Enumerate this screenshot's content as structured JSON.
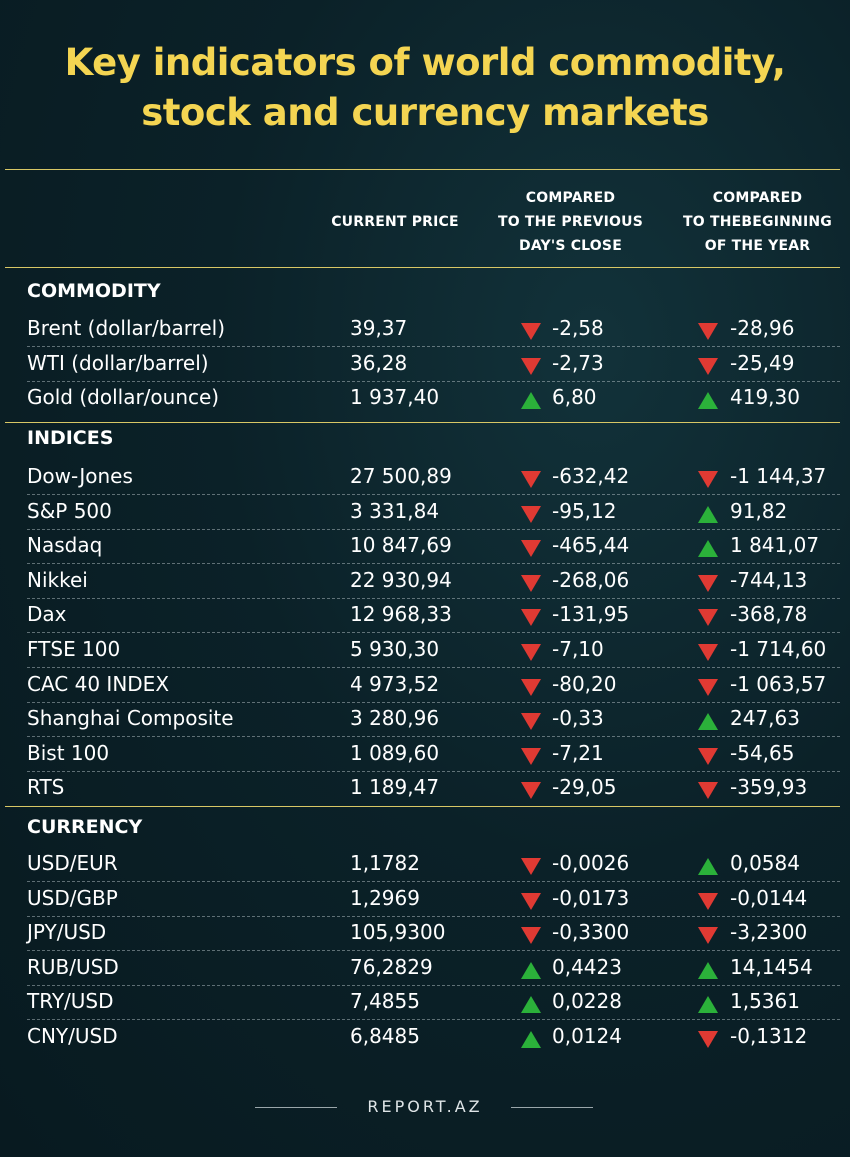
{
  "title": "Key indicators of world commodity, stock and currency markets",
  "headers": {
    "current_price": "CURRENT PRICE",
    "prev_close": [
      "COMPARED",
      "TO THE PREVIOUS",
      "DAY'S CLOSE"
    ],
    "year_begin": [
      "COMPARED",
      "TO THEBEGINNING",
      "OF THE YEAR"
    ]
  },
  "colors": {
    "title": "#f4d552",
    "rule": "#d8c765",
    "up": "#2bb13a",
    "down": "#e03a33"
  },
  "sections": [
    {
      "label": "COMMODITY",
      "rows": [
        {
          "name": "Brent (dollar/barrel)",
          "price": "39,37",
          "d1": "down",
          "v1": "-2,58",
          "d2": "down",
          "v2": "-28,96"
        },
        {
          "name": "WTI (dollar/barrel)",
          "price": "36,28",
          "d1": "down",
          "v1": "-2,73",
          "d2": "down",
          "v2": "-25,49"
        },
        {
          "name": "Gold (dollar/ounce)",
          "price": "1 937,40",
          "d1": "up",
          "v1": "6,80",
          "d2": "up",
          "v2": "419,30"
        }
      ]
    },
    {
      "label": "INDICES",
      "rows": [
        {
          "name": "Dow-Jones",
          "price": "27 500,89",
          "d1": "down",
          "v1": "-632,42",
          "d2": "down",
          "v2": "-1 144,37"
        },
        {
          "name": "S&P 500",
          "price": "3 331,84",
          "d1": "down",
          "v1": "-95,12",
          "d2": "up",
          "v2": "91,82"
        },
        {
          "name": "Nasdaq",
          "price": "10 847,69",
          "d1": "down",
          "v1": "-465,44",
          "d2": "up",
          "v2": "1 841,07"
        },
        {
          "name": "Nikkei",
          "price": "22 930,94",
          "d1": "down",
          "v1": "-268,06",
          "d2": "down",
          "v2": "-744,13"
        },
        {
          "name": "Dax",
          "price": "12 968,33",
          "d1": "down",
          "v1": "-131,95",
          "d2": "down",
          "v2": "-368,78"
        },
        {
          "name": "FTSE 100",
          "price": "5 930,30",
          "d1": "down",
          "v1": "-7,10",
          "d2": "down",
          "v2": "-1 714,60"
        },
        {
          "name": "CAC 40 INDEX",
          "price": "4 973,52",
          "d1": "down",
          "v1": "-80,20",
          "d2": "down",
          "v2": "-1 063,57"
        },
        {
          "name": "Shanghai Composite",
          "price": "3 280,96",
          "d1": "down",
          "v1": "-0,33",
          "d2": "up",
          "v2": "247,63"
        },
        {
          "name": "Bist 100",
          "price": "1 089,60",
          "d1": "down",
          "v1": "-7,21",
          "d2": "down",
          "v2": "-54,65"
        },
        {
          "name": "RTS",
          "price": "1 189,47",
          "d1": "down",
          "v1": "-29,05",
          "d2": "down",
          "v2": "-359,93"
        }
      ]
    },
    {
      "label": "CURRENCY",
      "rows": [
        {
          "name": "USD/EUR",
          "price": "1,1782",
          "d1": "down",
          "v1": "-0,0026",
          "d2": "up",
          "v2": "0,0584"
        },
        {
          "name": "USD/GBP",
          "price": "1,2969",
          "d1": "down",
          "v1": "-0,0173",
          "d2": "down",
          "v2": "-0,0144"
        },
        {
          "name": "JPY/USD",
          "price": "105,9300",
          "d1": "down",
          "v1": "-0,3300",
          "d2": "down",
          "v2": "-3,2300"
        },
        {
          "name": "RUB/USD",
          "price": "76,2829",
          "d1": "up",
          "v1": "0,4423",
          "d2": "up",
          "v2": "14,1454"
        },
        {
          "name": "TRY/USD",
          "price": "7,4855",
          "d1": "up",
          "v1": "0,0228",
          "d2": "up",
          "v2": "1,5361"
        },
        {
          "name": "CNY/USD",
          "price": "6,8485",
          "d1": "up",
          "v1": "0,0124",
          "d2": "down",
          "v2": "-0,1312"
        }
      ]
    }
  ],
  "footer": "REPORT.AZ"
}
